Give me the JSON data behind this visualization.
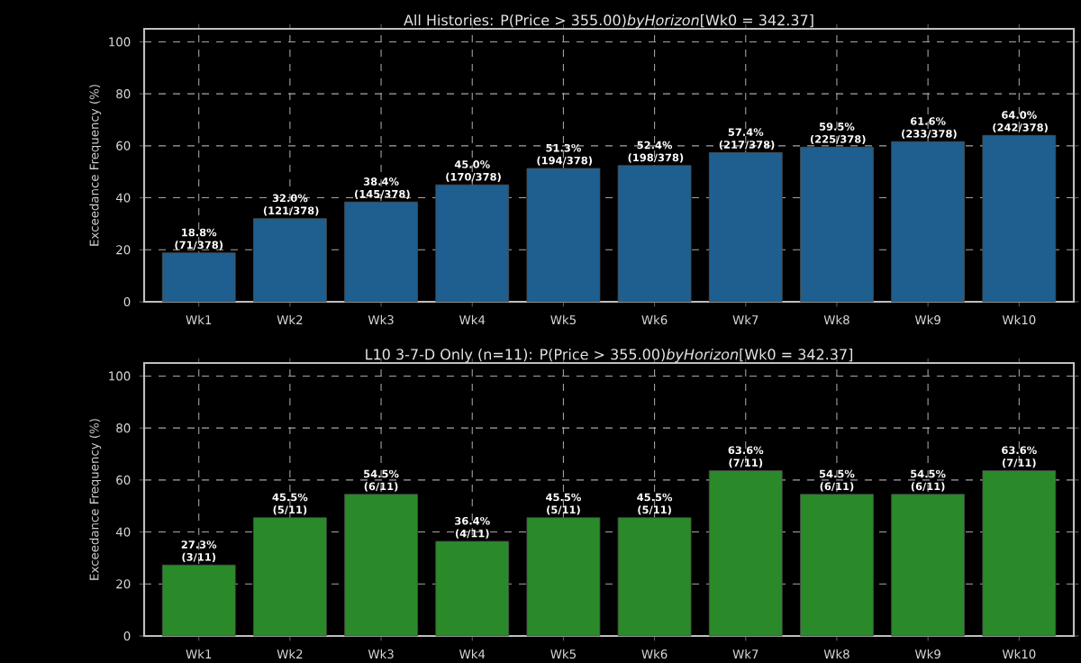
{
  "chart_data": [
    {
      "type": "bar",
      "title": "All Histories: P(Price > 355.00)*byHorizon*[Wk0 = 342.37]",
      "ylabel": "Exceedance Frequency (%)",
      "categories": [
        "Wk1",
        "Wk2",
        "Wk3",
        "Wk4",
        "Wk5",
        "Wk6",
        "Wk7",
        "Wk8",
        "Wk9",
        "Wk10"
      ],
      "values": [
        18.8,
        32.0,
        38.4,
        45.0,
        51.3,
        52.4,
        57.4,
        59.5,
        61.6,
        64.0
      ],
      "color": "#1f5f8f",
      "value_labels": [
        "18.8% (71/378)",
        "32.0% (121/378)",
        "38.4% (145/378)",
        "45.0% (170/378)",
        "51.3% (194/378)",
        "52.4% (198/378)",
        "57.4% (217/378)",
        "59.5% (225/378)",
        "61.6% (233/378)",
        "64.0% (242/378)"
      ],
      "ylim": [
        0,
        105
      ],
      "yticks": [
        0,
        20,
        40,
        60,
        80,
        100
      ],
      "grid": true
    },
    {
      "type": "bar",
      "title": "L10 3-7-D Only (n=11): P(Price > 355.00)*byHorizon*[Wk0 = 342.37]",
      "ylabel": "Exceedance Frequency (%)",
      "categories": [
        "Wk1",
        "Wk2",
        "Wk3",
        "Wk4",
        "Wk5",
        "Wk6",
        "Wk7",
        "Wk8",
        "Wk9",
        "Wk10"
      ],
      "values": [
        27.3,
        45.5,
        54.5,
        36.4,
        45.5,
        45.5,
        63.6,
        54.5,
        54.5,
        63.6
      ],
      "color": "#2a8a2a",
      "value_labels": [
        "27.3% (3/11)",
        "45.5% (5/11)",
        "54.5% (6/11)",
        "36.4% (4/11)",
        "45.5% (5/11)",
        "45.5% (5/11)",
        "63.6% (7/11)",
        "54.5% (6/11)",
        "54.5% (6/11)",
        "63.6% (7/11)"
      ],
      "ylim": [
        0,
        105
      ],
      "yticks": [
        0,
        20,
        40,
        60,
        80,
        100
      ],
      "grid": true
    }
  ]
}
